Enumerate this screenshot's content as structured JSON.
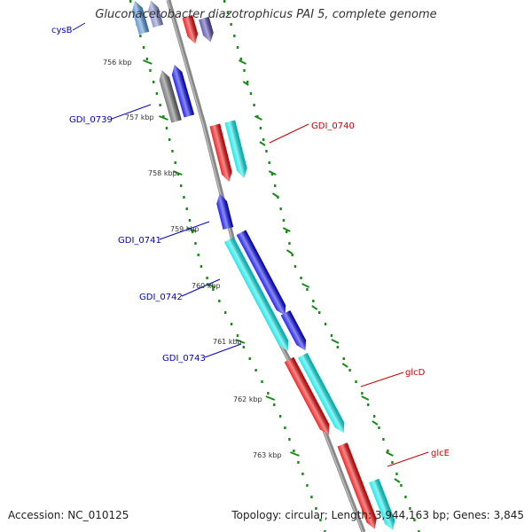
{
  "title": "Gluconacetobacter diazotrophicus PAI 5, complete genome",
  "footer": {
    "accession": "Accession: NC_010125",
    "summary": "Topology: circular; Length: 3,944,163 bp; Genes: 3,845"
  },
  "colors": {
    "backbone": "#888888",
    "reverse_label": "#0000cc",
    "forward_label": "#cc0000",
    "tick": "#1a8a1a",
    "blue": "#0000ee",
    "cyan": "#00e5e5",
    "red": "#ee0000",
    "gray": "#666666"
  },
  "scale_labels": [
    "756 kbp",
    "757 kbp",
    "758 kbp",
    "759 kbp",
    "760 kbp",
    "761 kbp",
    "762 kbp",
    "763 kbp"
  ],
  "gene_labels": {
    "reverse": [
      "cysB",
      "GDI_0739",
      "GDI_0741",
      "GDI_0742",
      "GDI_0743"
    ],
    "forward": [
      "GDI_0740",
      "glcD",
      "glcE"
    ]
  }
}
